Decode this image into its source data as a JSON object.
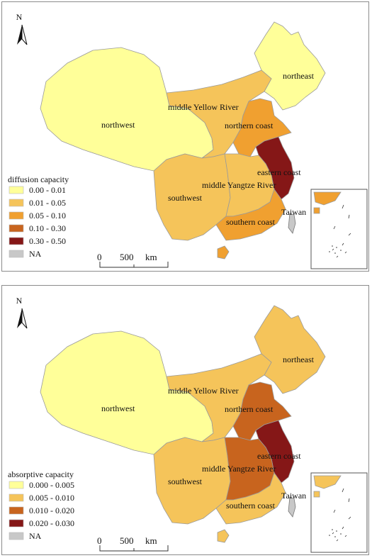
{
  "maps": [
    {
      "legend_title": "diffusion capacity",
      "classes": [
        {
          "label": "0.00 - 0.01",
          "color": "#ffff99"
        },
        {
          "label": "0.01 - 0.05",
          "color": "#f5c45a"
        },
        {
          "label": "0.05 - 0.10",
          "color": "#f0a030"
        },
        {
          "label": "0.10 - 0.30",
          "color": "#c8641e"
        },
        {
          "label": "0.30 - 0.50",
          "color": "#851717"
        },
        {
          "label": "NA",
          "color": "#c8c8c8"
        }
      ],
      "region_class": {
        "northwest": 0,
        "northeast": 0,
        "middle Yellow River": 1,
        "northern coast": 2,
        "eastern coast": 4,
        "southwest": 1,
        "middle Yangtze River": 1,
        "southern coast": 2,
        "Taiwan": 5
      }
    },
    {
      "legend_title": "absorptive capacity",
      "classes": [
        {
          "label": "0.000 - 0.005",
          "color": "#ffff99"
        },
        {
          "label": "0.005 - 0.010",
          "color": "#f5c45a"
        },
        {
          "label": "0.010 - 0.020",
          "color": "#c8641e"
        },
        {
          "label": "0.020 - 0.030",
          "color": "#851717"
        },
        {
          "label": "NA",
          "color": "#c8c8c8"
        }
      ],
      "region_class": {
        "northwest": 0,
        "northeast": 1,
        "middle Yellow River": 1,
        "northern coast": 2,
        "eastern coast": 3,
        "southwest": 1,
        "middle Yangtze River": 2,
        "southern coast": 1,
        "Taiwan": 4
      }
    }
  ],
  "region_labels": {
    "northwest": "northwest",
    "northeast": "northeast",
    "middle_yellow_river": "middle Yellow River",
    "northern_coast": "northern coast",
    "eastern_coast": "eastern coast",
    "southwest": "southwest",
    "middle_yangtze_river": "middle Yangtze River",
    "southern_coast": "southern coast",
    "taiwan": "Taiwan"
  },
  "north_arrow_label": "N",
  "scale_bar": {
    "start": "0",
    "end": "500",
    "unit": "km"
  }
}
